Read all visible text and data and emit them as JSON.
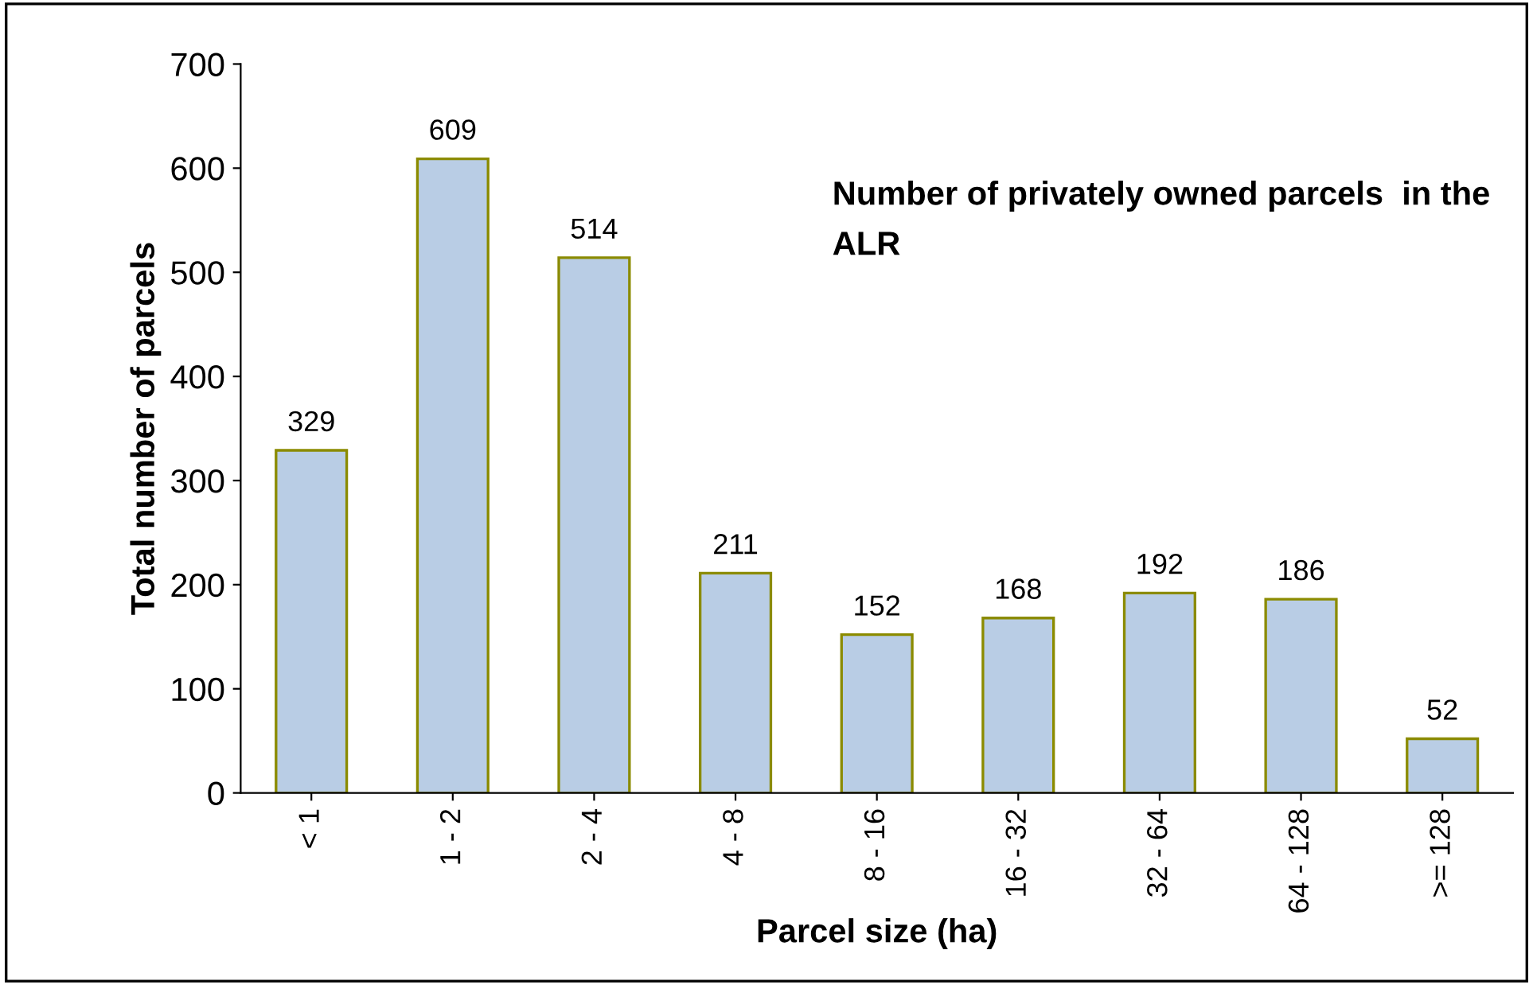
{
  "chart_data": {
    "type": "bar",
    "title": "Number of privately owned parcels  in the ALR",
    "xlabel": "Parcel size (ha)",
    "ylabel": "Total number of parcels",
    "categories": [
      "< 1",
      "1 - 2",
      "2 - 4",
      "4 - 8",
      "8 - 16",
      "16 - 32",
      "32 - 64",
      "64 - 128",
      ">= 128"
    ],
    "values": [
      329,
      609,
      514,
      211,
      152,
      168,
      192,
      186,
      52
    ],
    "color": "#b9cde5",
    "ylim": [
      0,
      700
    ],
    "yticks": [
      0,
      100,
      200,
      300,
      400,
      500,
      600,
      700
    ],
    "grid": false,
    "data_labels": true,
    "legend": false
  }
}
